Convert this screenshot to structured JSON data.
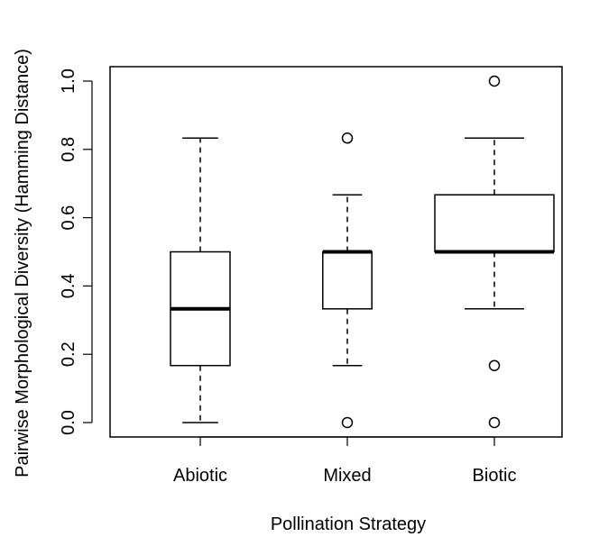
{
  "chart_data": {
    "type": "boxplot",
    "xlabel": "Pollination Strategy",
    "ylabel": "Pairwise Morphological Diversity (Hamming Distance)",
    "ylim": [
      -0.04,
      1.04
    ],
    "yticks": [
      "0.0",
      "0.2",
      "0.4",
      "0.6",
      "0.8",
      "1.0"
    ],
    "ytick_values": [
      0.0,
      0.2,
      0.4,
      0.6,
      0.8,
      1.0
    ],
    "categories": [
      "Abiotic",
      "Mixed",
      "Biotic"
    ],
    "boxes": [
      {
        "name": "Abiotic",
        "whisker_low": 0.0,
        "q1": 0.167,
        "median": 0.333,
        "q3": 0.5,
        "whisker_high": 0.833,
        "outliers": [],
        "width": 0.25
      },
      {
        "name": "Mixed",
        "whisker_low": 0.167,
        "q1": 0.333,
        "median": 0.5,
        "q3": 0.5,
        "whisker_high": 0.667,
        "outliers": [
          0.0,
          0.833
        ],
        "width": 0.17
      },
      {
        "name": "Biotic",
        "whisker_low": 0.333,
        "q1": 0.5,
        "median": 0.5,
        "q3": 0.667,
        "whisker_high": 0.833,
        "outliers": [
          0.0,
          0.167,
          1.0
        ],
        "width": 1.0
      }
    ],
    "grid": false,
    "legend": "none"
  }
}
